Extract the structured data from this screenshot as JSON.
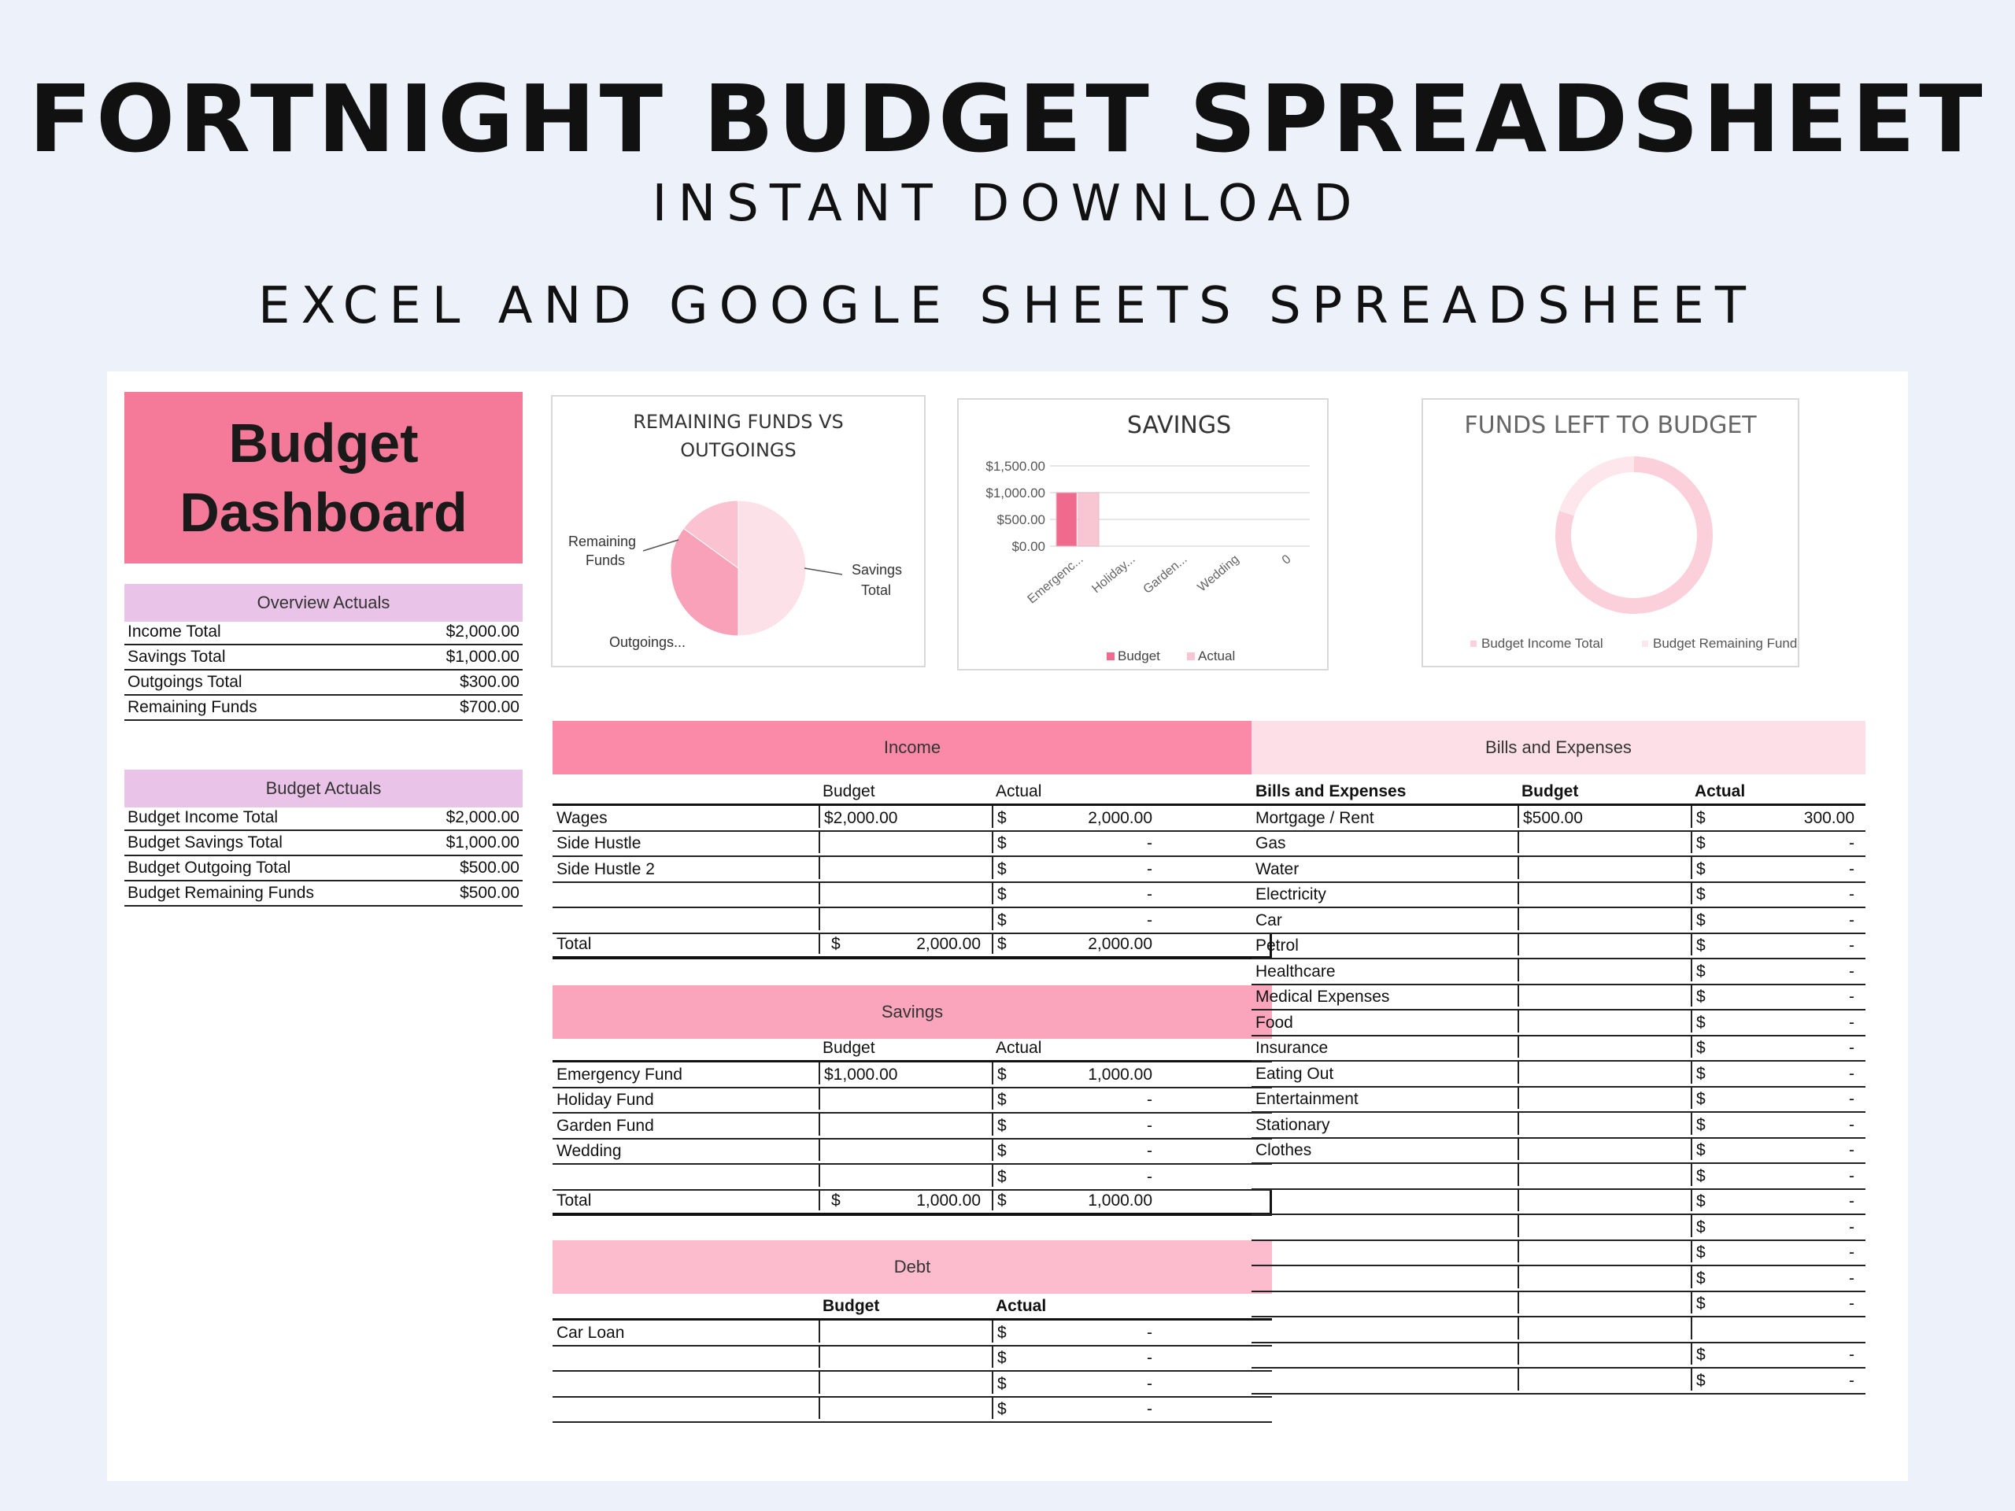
{
  "header": {
    "title": "FORTNIGHT BUDGET SPREADSHEET",
    "subtitle1": "INSTANT DOWNLOAD",
    "subtitle2": "EXCEL AND GOOGLE SHEETS SPREADSHEET"
  },
  "dashboard": {
    "title": "Budget\nDashboard"
  },
  "overview": {
    "heading": "Overview Actuals",
    "rows": [
      {
        "label": "Income Total",
        "value": "$2,000.00"
      },
      {
        "label": "Savings Total",
        "value": "$1,000.00"
      },
      {
        "label": "Outgoings Total",
        "value": "$300.00"
      },
      {
        "label": "Remaining Funds",
        "value": "$700.00"
      }
    ]
  },
  "budget_actuals": {
    "heading": "Budget Actuals",
    "rows": [
      {
        "label": "Budget Income Total",
        "value": "$2,000.00"
      },
      {
        "label": "Budget Savings Total",
        "value": "$1,000.00"
      },
      {
        "label": "Budget Outgoing Total",
        "value": "$500.00"
      },
      {
        "label": "Budget Remaining Funds",
        "value": "$500.00"
      }
    ]
  },
  "colors": {
    "primary": "#f57a99",
    "income": "#fb8aa8",
    "savings": "#fba5bd",
    "debt": "#fdbccd",
    "bills": "#fde0e7",
    "lavender": "#eac3e8"
  },
  "chart_data": [
    {
      "type": "pie",
      "title": "REMAINING FUNDS VS OUTGOINGS",
      "slices": [
        {
          "label": "Remaining Funds",
          "value": 700,
          "color": "#f8a1b9"
        },
        {
          "label": "Outgoings...",
          "value": 300,
          "color": "#fbc3d1"
        },
        {
          "label": "Savings Total",
          "value": 1000,
          "color": "#fde1e8"
        }
      ]
    },
    {
      "type": "bar",
      "title": "SAVINGS",
      "categories": [
        "Emergenc...",
        "Holiday...",
        "Garden...",
        "Wedding",
        "0"
      ],
      "series": [
        {
          "name": "Budget",
          "values": [
            1000,
            0,
            0,
            0,
            0
          ],
          "color": "#f06a8d"
        },
        {
          "name": "Actual",
          "values": [
            1000,
            0,
            0,
            0,
            0
          ],
          "color": "#f8c6d3"
        }
      ],
      "yticks": [
        "$1,500.00",
        "$1,000.00",
        "$500.00",
        "$0.00"
      ],
      "ylim": [
        0,
        1500
      ],
      "grid": true,
      "legend": "bottom"
    },
    {
      "type": "pie",
      "title": "FUNDS LEFT TO BUDGET",
      "donut": true,
      "slices": [
        {
          "label": "Budget Income Total",
          "value": 2000,
          "color": "#fcd0da"
        },
        {
          "label": "Budget Remaining Funds",
          "value": 500,
          "color": "#fde7ec"
        }
      ],
      "legend": "bottom"
    }
  ],
  "income": {
    "heading": "Income",
    "col_budget": "Budget",
    "col_actual": "Actual",
    "rows": [
      {
        "label": "Wages",
        "budget": "$2,000.00",
        "sym": "$",
        "actual": "2,000.00"
      },
      {
        "label": "Side Hustle",
        "budget": "",
        "sym": "$",
        "actual": "-"
      },
      {
        "label": "Side Hustle 2",
        "budget": "",
        "sym": "$",
        "actual": "-"
      },
      {
        "label": "",
        "budget": "",
        "sym": "$",
        "actual": "-"
      },
      {
        "label": "",
        "budget": "",
        "sym": "$",
        "actual": "-"
      }
    ],
    "total": {
      "label": "Total",
      "bsym": "$",
      "budget": "2,000.00",
      "asym": "$",
      "actual": "2,000.00"
    }
  },
  "savings": {
    "heading": "Savings",
    "col_budget": "Budget",
    "col_actual": "Actual",
    "rows": [
      {
        "label": "Emergency Fund",
        "budget": "$1,000.00",
        "sym": "$",
        "actual": "1,000.00"
      },
      {
        "label": "Holiday Fund",
        "budget": "",
        "sym": "$",
        "actual": "-"
      },
      {
        "label": "Garden Fund",
        "budget": "",
        "sym": "$",
        "actual": "-"
      },
      {
        "label": "Wedding",
        "budget": "",
        "sym": "$",
        "actual": "-"
      },
      {
        "label": "",
        "budget": "",
        "sym": "$",
        "actual": "-"
      }
    ],
    "total": {
      "label": "Total",
      "bsym": "$",
      "budget": "1,000.00",
      "asym": "$",
      "actual": "1,000.00"
    }
  },
  "debt": {
    "heading": "Debt",
    "col_budget": "Budget",
    "col_actual": "Actual",
    "rows": [
      {
        "label": "Car Loan",
        "budget": "",
        "sym": "$",
        "actual": "-"
      },
      {
        "label": "",
        "budget": "",
        "sym": "$",
        "actual": "-"
      },
      {
        "label": "",
        "budget": "",
        "sym": "$",
        "actual": "-"
      },
      {
        "label": "",
        "budget": "",
        "sym": "$",
        "actual": "-"
      }
    ]
  },
  "bills": {
    "heading": "Bills and Expenses",
    "col_label": "Bills and Expenses",
    "col_budget": "Budget",
    "col_actual": "Actual",
    "rows": [
      {
        "label": "Mortgage / Rent",
        "budget": "$500.00",
        "sym": "$",
        "actual": "300.00"
      },
      {
        "label": "Gas",
        "budget": "",
        "sym": "$",
        "actual": "-"
      },
      {
        "label": "Water",
        "budget": "",
        "sym": "$",
        "actual": "-"
      },
      {
        "label": "Electricity",
        "budget": "",
        "sym": "$",
        "actual": "-"
      },
      {
        "label": "Car",
        "budget": "",
        "sym": "$",
        "actual": "-"
      },
      {
        "label": "Petrol",
        "budget": "",
        "sym": "$",
        "actual": "-"
      },
      {
        "label": "Healthcare",
        "budget": "",
        "sym": "$",
        "actual": "-"
      },
      {
        "label": "Medical Expenses",
        "budget": "",
        "sym": "$",
        "actual": "-"
      },
      {
        "label": "Food",
        "budget": "",
        "sym": "$",
        "actual": "-"
      },
      {
        "label": "Insurance",
        "budget": "",
        "sym": "$",
        "actual": "-"
      },
      {
        "label": "Eating Out",
        "budget": "",
        "sym": "$",
        "actual": "-"
      },
      {
        "label": "Entertainment",
        "budget": "",
        "sym": "$",
        "actual": "-"
      },
      {
        "label": "Stationary",
        "budget": "",
        "sym": "$",
        "actual": "-"
      },
      {
        "label": "Clothes",
        "budget": "",
        "sym": "$",
        "actual": "-"
      },
      {
        "label": "",
        "budget": "",
        "sym": "$",
        "actual": "-"
      },
      {
        "label": "",
        "budget": "",
        "sym": "$",
        "actual": "-"
      },
      {
        "label": "",
        "budget": "",
        "sym": "$",
        "actual": "-"
      },
      {
        "label": "",
        "budget": "",
        "sym": "$",
        "actual": "-"
      },
      {
        "label": "",
        "budget": "",
        "sym": "$",
        "actual": "-"
      },
      {
        "label": "",
        "budget": "",
        "sym": "$",
        "actual": "-"
      },
      {
        "label": "",
        "budget": "",
        "sym": "",
        "actual": ""
      },
      {
        "label": "",
        "budget": "",
        "sym": "$",
        "actual": "-"
      },
      {
        "label": "",
        "budget": "",
        "sym": "$",
        "actual": "-"
      }
    ]
  }
}
